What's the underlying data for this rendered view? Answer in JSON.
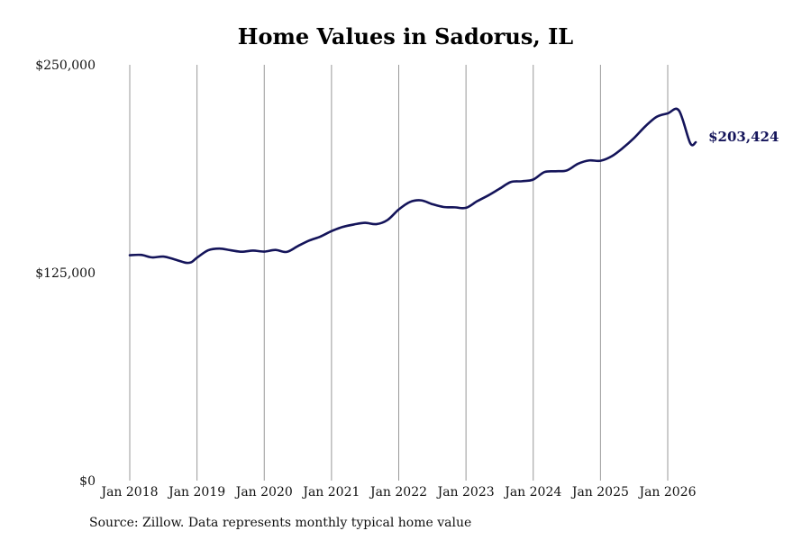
{
  "title": "Home Values in Sadorus, IL",
  "source": "Source: Zillow. Data represents monthly typical home value",
  "colors": {
    "line": "#14145a",
    "grid": "#999999",
    "label": "#14145a"
  },
  "chart_data": {
    "type": "line",
    "title": "Home Values in Sadorus, IL",
    "xlabel": "",
    "ylabel": "",
    "ylim": [
      0,
      250000
    ],
    "y_ticks": [
      0,
      125000,
      250000
    ],
    "y_tick_labels": [
      "$0",
      "$125,000",
      "$250,000"
    ],
    "x_ticks": [
      "2018-01",
      "2019-01",
      "2020-01",
      "2021-01",
      "2022-01",
      "2023-01",
      "2024-01",
      "2025-01",
      "2026-01"
    ],
    "x_tick_labels": [
      "Jan 2018",
      "Jan 2019",
      "Jan 2020",
      "Jan 2021",
      "Jan 2022",
      "Jan 2023",
      "Jan 2024",
      "Jan 2025",
      "Jan 2026"
    ],
    "grid": "vertical",
    "end_label": "$203,424",
    "series": [
      {
        "x": [
          "2018-01",
          "2018-03",
          "2018-05",
          "2018-07",
          "2018-09",
          "2018-11",
          "2018-12",
          "2019-01",
          "2019-03",
          "2019-05",
          "2019-07",
          "2019-09",
          "2019-11",
          "2020-01",
          "2020-03",
          "2020-05",
          "2020-07",
          "2020-09",
          "2020-11",
          "2021-01",
          "2021-03",
          "2021-05",
          "2021-07",
          "2021-09",
          "2021-11",
          "2022-01",
          "2022-03",
          "2022-05",
          "2022-07",
          "2022-09",
          "2022-11",
          "2023-01",
          "2023-03",
          "2023-05",
          "2023-07",
          "2023-09",
          "2023-11",
          "2024-01",
          "2024-03",
          "2024-05",
          "2024-07",
          "2024-09",
          "2024-11",
          "2025-01",
          "2025-03",
          "2025-05",
          "2025-07",
          "2025-09",
          "2025-11",
          "2026-01",
          "2026-03",
          "2026-05",
          "2026-06"
        ],
        "values": [
          135500,
          135700,
          134200,
          134700,
          133000,
          131000,
          131300,
          134000,
          138500,
          139500,
          138500,
          137600,
          138300,
          137700,
          138700,
          137500,
          141000,
          144300,
          146700,
          150000,
          152500,
          154000,
          155000,
          154200,
          156700,
          163000,
          167500,
          168500,
          166200,
          164500,
          164300,
          164000,
          168000,
          171500,
          175500,
          179500,
          180000,
          181000,
          185500,
          186000,
          186500,
          190500,
          192500,
          192300,
          195000,
          200000,
          206000,
          213000,
          218700,
          220800,
          222500,
          203000,
          203424
        ]
      }
    ]
  }
}
